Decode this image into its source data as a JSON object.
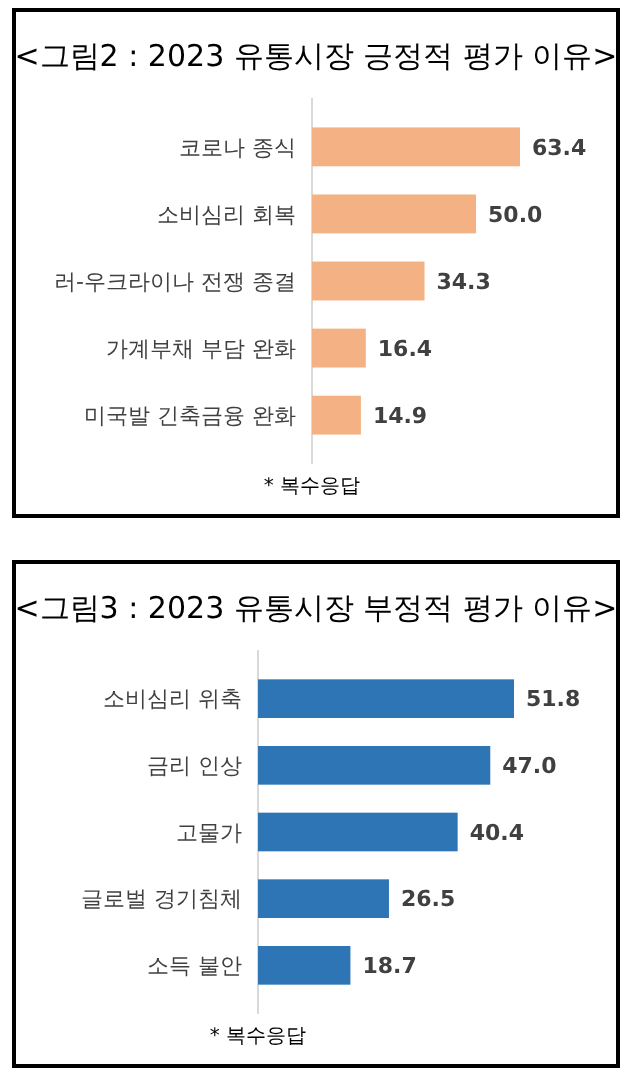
{
  "chart_data": [
    {
      "type": "bar",
      "orientation": "horizontal",
      "title": "<그림2 : 2023 유통시장 긍정적 평가 이유>",
      "categories": [
        "코로나 종식",
        "소비심리 회복",
        "러-우크라이나 전쟁 종결",
        "가계부채 부담 완화",
        "미국발 긴축금융 완화"
      ],
      "values": [
        63.4,
        50.0,
        34.3,
        16.4,
        14.9
      ],
      "value_labels": [
        "63.4",
        "50.0",
        "34.3",
        "16.4",
        "14.9"
      ],
      "color": "#f4b183",
      "annotations": [
        "* 복수응답"
      ]
    },
    {
      "type": "bar",
      "orientation": "horizontal",
      "title": "<그림3 : 2023 유통시장 부정적 평가 이유>",
      "categories": [
        "소비심리 위축",
        "금리 인상",
        "고물가",
        "글로벌 경기침체",
        "소득 불안"
      ],
      "values": [
        51.8,
        47.0,
        40.4,
        26.5,
        18.7
      ],
      "value_labels": [
        "51.8",
        "47.0",
        "40.4",
        "26.5",
        "18.7"
      ],
      "color": "#2e75b6",
      "annotations": [
        "* 복수응답"
      ]
    }
  ]
}
